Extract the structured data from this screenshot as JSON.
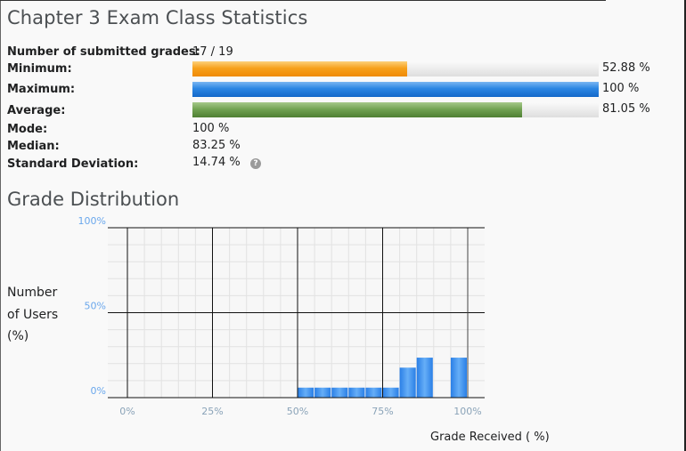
{
  "title": "Chapter 3 Exam Class Statistics",
  "stats": {
    "submitted": {
      "label": "Number of submitted grades:",
      "value": "17 / 19"
    },
    "minimum": {
      "label": "Minimum:",
      "value": "52.88 %",
      "fraction": 0.5288,
      "color": "#f7a11b"
    },
    "maximum": {
      "label": "Maximum:",
      "value": "100 %",
      "fraction": 1.0,
      "color": "#2b86e3"
    },
    "average": {
      "label": "Average:",
      "value": "81.05 %",
      "fraction": 0.8105,
      "color": "#72a353"
    },
    "mode": {
      "label": "Mode:",
      "value": "100 %"
    },
    "median": {
      "label": "Median:",
      "value": "83.25 %"
    },
    "std_dev": {
      "label": "Standard Deviation:",
      "value": "14.74 %",
      "icon": "help-icon"
    }
  },
  "distribution_title": "Grade Distribution",
  "chart_data": {
    "type": "bar",
    "xlabel": "Grade Received ( %)",
    "ylabel_lines": [
      "Number",
      "of Users",
      "(%)"
    ],
    "x_ticks": [
      "0%",
      "25%",
      "50%",
      "75%",
      "100%"
    ],
    "y_ticks": [
      "0%",
      "50%",
      "100%"
    ],
    "xlim": [
      0,
      100
    ],
    "ylim": [
      0,
      100
    ],
    "grid": true,
    "bar_color": "#3d8ff0",
    "bins": [
      {
        "x0": 50,
        "x1": 55,
        "value": 5.88
      },
      {
        "x0": 55,
        "x1": 60,
        "value": 5.88
      },
      {
        "x0": 60,
        "x1": 65,
        "value": 5.88
      },
      {
        "x0": 65,
        "x1": 70,
        "value": 5.88
      },
      {
        "x0": 70,
        "x1": 75,
        "value": 5.88
      },
      {
        "x0": 75,
        "x1": 80,
        "value": 5.88
      },
      {
        "x0": 80,
        "x1": 85,
        "value": 17.65
      },
      {
        "x0": 85,
        "x1": 90,
        "value": 23.53
      },
      {
        "x0": 95,
        "x1": 100,
        "value": 23.53
      }
    ]
  }
}
